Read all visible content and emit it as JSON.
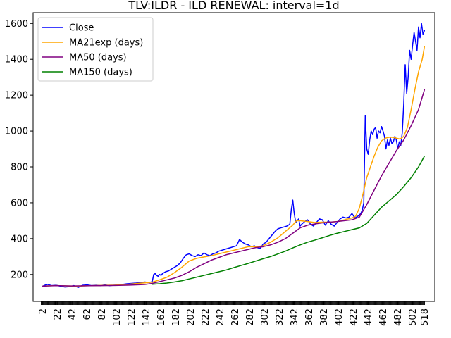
{
  "chart_data": {
    "type": "line",
    "title": "TLV:ILDR - ILD RENEWAL: interval=1d",
    "xlabel": "",
    "ylabel": "",
    "xlim": [
      -11,
      532
    ],
    "ylim": [
      50,
      1660
    ],
    "x_ticks": [
      2,
      22,
      42,
      62,
      82,
      102,
      122,
      142,
      162,
      182,
      202,
      222,
      242,
      262,
      282,
      302,
      322,
      342,
      362,
      382,
      402,
      422,
      442,
      462,
      482,
      502,
      518
    ],
    "y_ticks": [
      200,
      400,
      600,
      800,
      1000,
      1200,
      1400,
      1600
    ],
    "grid": false,
    "legend_position": "upper-left",
    "series": [
      {
        "name": "Close",
        "color": "#0000ff",
        "x": [
          2,
          8,
          14,
          20,
          26,
          32,
          38,
          44,
          50,
          56,
          62,
          68,
          74,
          80,
          86,
          92,
          98,
          104,
          110,
          116,
          122,
          128,
          134,
          140,
          146,
          150,
          152,
          154,
          156,
          158,
          160,
          162,
          164,
          166,
          168,
          172,
          176,
          180,
          184,
          188,
          192,
          196,
          200,
          204,
          208,
          212,
          216,
          220,
          224,
          228,
          232,
          236,
          240,
          244,
          248,
          252,
          256,
          260,
          264,
          268,
          272,
          276,
          280,
          284,
          288,
          292,
          296,
          300,
          304,
          308,
          312,
          316,
          320,
          324,
          328,
          332,
          336,
          338,
          340,
          342,
          344,
          346,
          348,
          350,
          352,
          356,
          360,
          364,
          368,
          372,
          376,
          380,
          384,
          388,
          392,
          396,
          400,
          404,
          408,
          412,
          416,
          420,
          424,
          428,
          432,
          434,
          436,
          438,
          440,
          442,
          444,
          446,
          448,
          450,
          452,
          454,
          456,
          458,
          460,
          462,
          464,
          466,
          468,
          470,
          472,
          474,
          476,
          478,
          480,
          482,
          484,
          486,
          488,
          490,
          492,
          494,
          496,
          498,
          500,
          502,
          504,
          506,
          508,
          510,
          512,
          514,
          516,
          518
        ],
        "y": [
          135,
          145,
          138,
          140,
          135,
          130,
          132,
          138,
          128,
          140,
          142,
          138,
          140,
          138,
          142,
          138,
          140,
          142,
          145,
          148,
          150,
          152,
          155,
          158,
          155,
          160,
          200,
          205,
          195,
          190,
          200,
          195,
          205,
          210,
          215,
          220,
          230,
          240,
          250,
          265,
          290,
          310,
          315,
          305,
          300,
          310,
          305,
          320,
          310,
          305,
          315,
          320,
          330,
          335,
          340,
          345,
          350,
          355,
          360,
          395,
          380,
          370,
          365,
          355,
          360,
          350,
          345,
          370,
          380,
          400,
          420,
          440,
          455,
          460,
          465,
          470,
          480,
          560,
          615,
          540,
          490,
          500,
          510,
          470,
          480,
          495,
          505,
          480,
          470,
          490,
          510,
          505,
          475,
          500,
          480,
          470,
          490,
          510,
          520,
          515,
          520,
          540,
          515,
          525,
          540,
          560,
          600,
          1085,
          900,
          870,
          950,
          1000,
          980,
          1010,
          1020,
          960,
          1000,
          990,
          1025,
          1000,
          970,
          900,
          950,
          920,
          960,
          930,
          940,
          970,
          950,
          900,
          940,
          920,
          990,
          1150,
          1370,
          1210,
          1300,
          1450,
          1400,
          1480,
          1550,
          1500,
          1450,
          1580,
          1520,
          1600,
          1540,
          1560
        ]
      },
      {
        "name": "MA21exp (days)",
        "color": "#ffa500",
        "x": [
          2,
          10,
          20,
          30,
          40,
          50,
          60,
          70,
          80,
          90,
          100,
          110,
          120,
          130,
          140,
          150,
          160,
          170,
          180,
          190,
          200,
          210,
          220,
          230,
          240,
          250,
          260,
          270,
          280,
          290,
          300,
          310,
          320,
          330,
          340,
          345,
          350,
          360,
          370,
          380,
          390,
          400,
          410,
          420,
          425,
          430,
          435,
          440,
          445,
          450,
          455,
          460,
          465,
          470,
          475,
          480,
          485,
          490,
          495,
          500,
          505,
          510,
          515,
          518
        ],
        "y": [
          135,
          137,
          138,
          137,
          136,
          135,
          137,
          138,
          139,
          140,
          141,
          143,
          146,
          150,
          153,
          157,
          170,
          185,
          210,
          240,
          275,
          290,
          298,
          305,
          315,
          325,
          335,
          345,
          355,
          355,
          360,
          380,
          405,
          440,
          475,
          500,
          500,
          495,
          490,
          492,
          492,
          495,
          505,
          515,
          525,
          570,
          650,
          740,
          800,
          860,
          910,
          945,
          960,
          965,
          965,
          960,
          955,
          970,
          1020,
          1120,
          1230,
          1330,
          1400,
          1470
        ]
      },
      {
        "name": "MA50 (days)",
        "color": "#800080",
        "x": [
          2,
          20,
          40,
          60,
          80,
          100,
          120,
          140,
          150,
          160,
          170,
          180,
          190,
          200,
          210,
          220,
          230,
          240,
          250,
          260,
          270,
          280,
          290,
          300,
          310,
          320,
          330,
          340,
          350,
          360,
          370,
          380,
          390,
          400,
          410,
          420,
          430,
          440,
          450,
          460,
          470,
          480,
          490,
          500,
          510,
          518
        ],
        "y": [
          135,
          138,
          136,
          137,
          138,
          139,
          141,
          144,
          150,
          160,
          170,
          180,
          195,
          215,
          240,
          260,
          280,
          295,
          310,
          320,
          330,
          340,
          350,
          355,
          365,
          380,
          400,
          430,
          460,
          475,
          482,
          488,
          492,
          495,
          500,
          505,
          520,
          590,
          670,
          750,
          820,
          890,
          950,
          1030,
          1120,
          1230
        ]
      },
      {
        "name": "MA150 (days)",
        "color": "#008000",
        "x": [
          150,
          160,
          170,
          180,
          190,
          200,
          210,
          220,
          230,
          240,
          250,
          260,
          270,
          280,
          290,
          300,
          310,
          320,
          330,
          340,
          350,
          360,
          370,
          380,
          390,
          400,
          410,
          420,
          430,
          440,
          450,
          460,
          470,
          480,
          490,
          500,
          510,
          518
        ],
        "y": [
          145,
          148,
          152,
          158,
          165,
          175,
          185,
          195,
          205,
          215,
          225,
          238,
          250,
          262,
          275,
          288,
          300,
          315,
          330,
          348,
          365,
          380,
          392,
          405,
          418,
          430,
          440,
          450,
          460,
          485,
          530,
          575,
          610,
          645,
          690,
          740,
          800,
          860
        ]
      }
    ]
  }
}
